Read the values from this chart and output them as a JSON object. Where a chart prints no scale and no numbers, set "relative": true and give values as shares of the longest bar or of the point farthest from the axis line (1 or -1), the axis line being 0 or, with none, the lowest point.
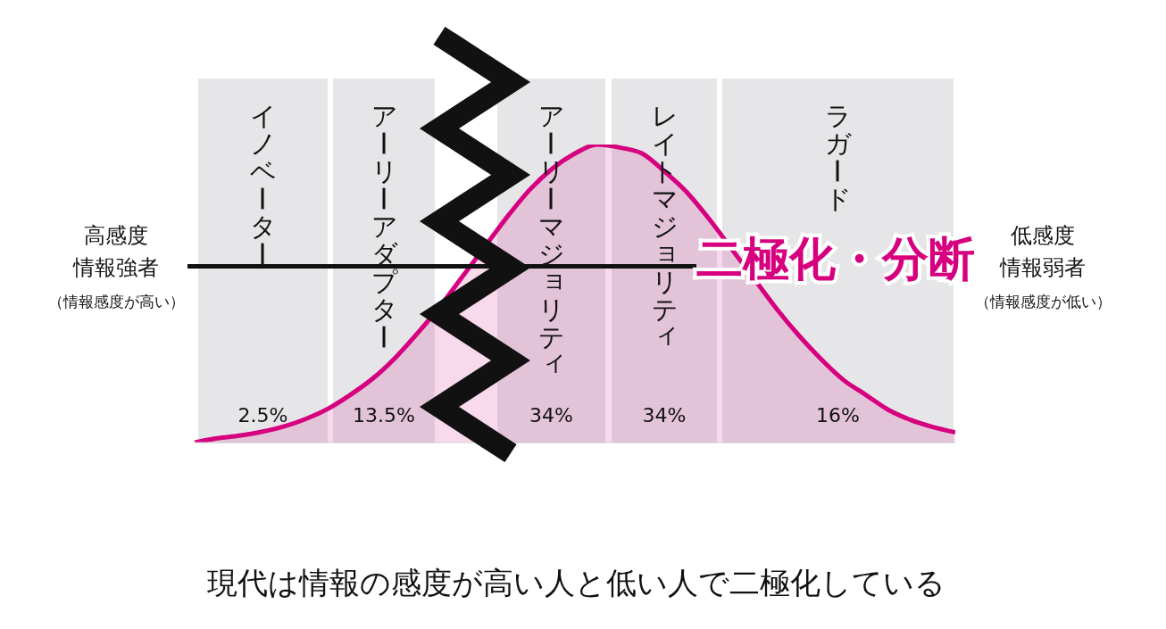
{
  "chart_data": [
    {
      "type": "other",
      "categories": [
        "イノベーター",
        "アーリーアダプター",
        "アーリーマジョリティ",
        "レイトマジョリティ",
        "ラガード"
      ],
      "values": [
        2.5,
        13.5,
        34,
        34,
        16
      ],
      "value_labels": [
        "2.5%",
        "13.5%",
        "34%",
        "34%",
        "16%"
      ],
      "annotations": [
        "高感度情報強者",
        "（情報感度が高い）",
        "低感度情報弱者",
        "（情報感度が低い）",
        "二極化・分断",
        "現代は情報の感度が高い人と低い人で二極化している"
      ]
    },
    {
      "type": "area",
      "relative": true,
      "categories": [
        null,
        null,
        null,
        null,
        null,
        null,
        null,
        null,
        null,
        null,
        null,
        null,
        null,
        null,
        null,
        null,
        null,
        null,
        null,
        null,
        null,
        null,
        null,
        null,
        null,
        null,
        null,
        null,
        null,
        null,
        null,
        null,
        null,
        null,
        null
      ],
      "series": [
        {
          "color": "#d6007f",
          "values": [
            0,
            0.014,
            0.023,
            0.036,
            0.054,
            0.08,
            0.115,
            0.162,
            0.217,
            0.287,
            0.37,
            0.46,
            0.56,
            0.66,
            0.76,
            0.85,
            0.92,
            0.97,
            1,
            0.99,
            0.97,
            0.91,
            0.84,
            0.75,
            0.65,
            0.55,
            0.45,
            0.36,
            0.28,
            0.21,
            0.16,
            0.11,
            0.076,
            0.052,
            0.034
          ]
        }
      ]
    }
  ]
}
